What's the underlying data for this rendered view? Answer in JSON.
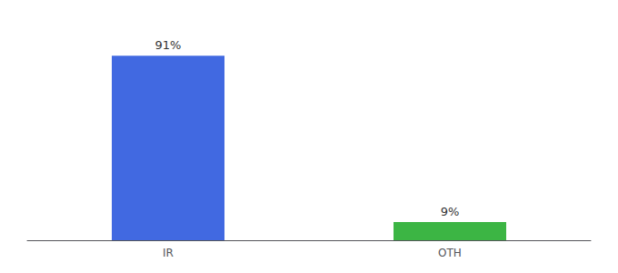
{
  "chart_data": {
    "type": "bar",
    "categories": [
      "IR",
      "OTH"
    ],
    "values": [
      91,
      9
    ],
    "value_labels": [
      "91%",
      "9%"
    ],
    "colors": [
      "#4169e1",
      "#3cb544"
    ],
    "ylim": [
      0,
      105
    ],
    "data_labels": true,
    "tick_labels": "x",
    "grid": false
  }
}
